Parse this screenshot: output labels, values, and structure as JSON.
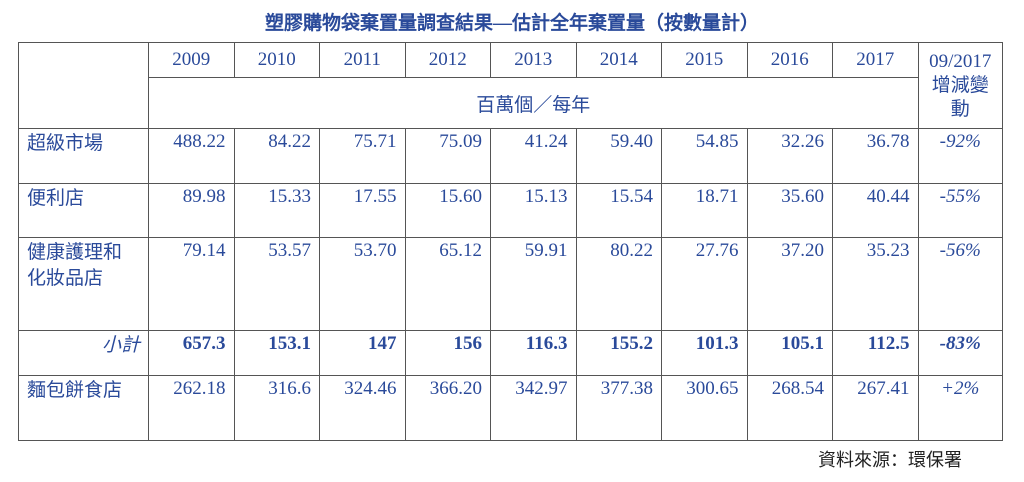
{
  "title": "塑膠購物袋棄置量調查結果—估計全年棄置量（按數量計）",
  "table": {
    "years": [
      "2009",
      "2010",
      "2011",
      "2012",
      "2013",
      "2014",
      "2015",
      "2016",
      "2017"
    ],
    "change_header": "09/2017 增減變動",
    "unit": "百萬個／每年",
    "rows": [
      {
        "label": "超級市場",
        "values": [
          "488.22",
          "84.22",
          "75.71",
          "75.09",
          "41.24",
          "59.40",
          "54.85",
          "32.26",
          "36.78"
        ],
        "change": "-92%"
      },
      {
        "label": "便利店",
        "values": [
          "89.98",
          "15.33",
          "17.55",
          "15.60",
          "15.13",
          "15.54",
          "18.71",
          "35.60",
          "40.44"
        ],
        "change": "-55%"
      },
      {
        "label": "健康護理和化妝品店",
        "values": [
          "79.14",
          "53.57",
          "53.70",
          "65.12",
          "59.91",
          "80.22",
          "27.76",
          "37.20",
          "35.23"
        ],
        "change": "-56%"
      },
      {
        "label": "小計",
        "values": [
          "657.3",
          "153.1",
          "147",
          "156",
          "116.3",
          "155.2",
          "101.3",
          "105.1",
          "112.5"
        ],
        "change": "-83%"
      },
      {
        "label": "麵包餅食店",
        "values": [
          "262.18",
          "316.6",
          "324.46",
          "366.20",
          "342.97",
          "377.38",
          "300.65",
          "268.54",
          "267.41"
        ],
        "change": "+2%"
      }
    ]
  },
  "source": "資料來源：環保署"
}
